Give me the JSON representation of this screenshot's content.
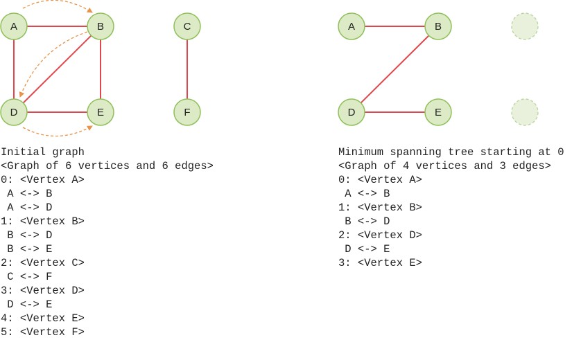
{
  "colors": {
    "node_fill": "#dcebc5",
    "node_stroke": "#8fbf5a",
    "placeholder_fill": "#e9f0dc",
    "placeholder_stroke": "#b9d49a",
    "edge": "#e0474c",
    "arrow": "#e8934a",
    "text": "#222222"
  },
  "left_graph": {
    "vertices": [
      "A",
      "B",
      "C",
      "D",
      "E",
      "F"
    ],
    "edges": [
      [
        "A",
        "B"
      ],
      [
        "A",
        "D"
      ],
      [
        "B",
        "D"
      ],
      [
        "B",
        "E"
      ],
      [
        "C",
        "F"
      ],
      [
        "D",
        "E"
      ]
    ],
    "traversal_arrows": [
      [
        "A",
        "B"
      ],
      [
        "B",
        "D"
      ],
      [
        "D",
        "E"
      ]
    ]
  },
  "right_graph": {
    "vertices": [
      "A",
      "B",
      "D",
      "E"
    ],
    "edges": [
      [
        "A",
        "B"
      ],
      [
        "B",
        "D"
      ],
      [
        "D",
        "E"
      ]
    ],
    "empty_slots": 2
  },
  "left_text": {
    "lines": [
      "Initial graph",
      "<Graph of 6 vertices and 6 edges>",
      "0: <Vertex A>",
      " A <-> B",
      " A <-> D",
      "1: <Vertex B>",
      " B <-> D",
      " B <-> E",
      "2: <Vertex C>",
      " C <-> F",
      "3: <Vertex D>",
      " D <-> E",
      "4: <Vertex E>",
      "5: <Vertex F>"
    ]
  },
  "right_text": {
    "lines": [
      "Minimum spanning tree starting at 0",
      "<Graph of 4 vertices and 3 edges>",
      "0: <Vertex A>",
      " A <-> B",
      "1: <Vertex B>",
      " B <-> D",
      "2: <Vertex D>",
      " D <-> E",
      "3: <Vertex E>"
    ]
  }
}
